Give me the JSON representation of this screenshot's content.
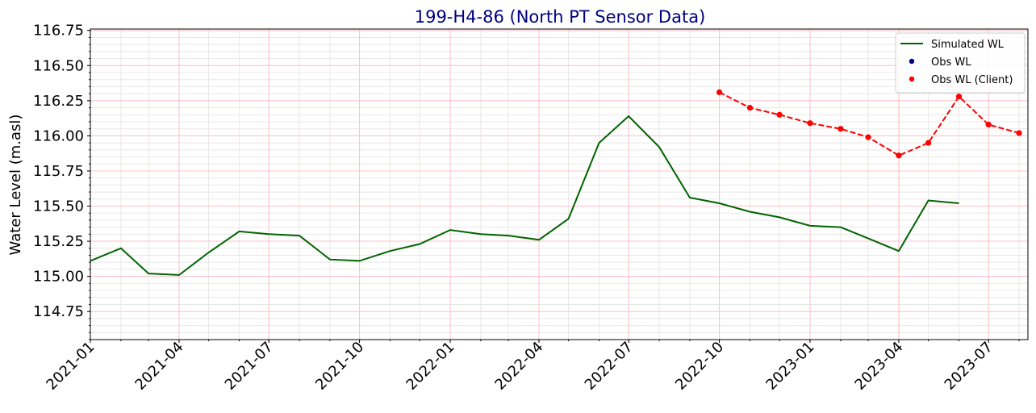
{
  "chart_data": {
    "type": "line",
    "title": "199-H4-86 (North PT Sensor Data)",
    "title_color": "#000080",
    "ylabel": "Water Level (m.asl)",
    "xlabel": "",
    "ylim": [
      114.55,
      116.76
    ],
    "xlim": [
      "2021-01-01",
      "2023-08-10"
    ],
    "y_ticks": [
      114.75,
      115.0,
      115.25,
      115.5,
      115.75,
      116.0,
      116.25,
      116.5,
      116.75
    ],
    "y_tick_labels": [
      "114.75",
      "115.00",
      "115.25",
      "115.50",
      "115.75",
      "116.00",
      "116.25",
      "116.50",
      "116.75"
    ],
    "x_ticks": [
      "2021-01-01",
      "2021-04-01",
      "2021-07-01",
      "2021-10-01",
      "2022-01-01",
      "2022-04-01",
      "2022-07-01",
      "2022-10-01",
      "2023-01-01",
      "2023-04-01",
      "2023-07-01"
    ],
    "x_tick_labels": [
      "2021-01",
      "2021-04",
      "2021-07",
      "2021-10",
      "2022-01",
      "2022-04",
      "2022-07",
      "2022-10",
      "2023-01",
      "2023-04",
      "2023-07"
    ],
    "grid": {
      "major": true,
      "minor": true,
      "major_color": "#ffc0cb",
      "minor_color": "#e8e8e8"
    },
    "legend": {
      "placement": "top-right",
      "entries": [
        {
          "label": "Simulated WL",
          "marker": "line",
          "color": "#006400"
        },
        {
          "label": "Obs WL",
          "marker": "dot",
          "color": "#000080"
        },
        {
          "label": "Obs WL (Client)",
          "marker": "dot",
          "color": "#ff0000"
        }
      ]
    },
    "series": [
      {
        "name": "Simulated WL",
        "style": "solid",
        "color": "#006400",
        "points": [
          {
            "x": "2021-01-01",
            "y": 115.11
          },
          {
            "x": "2021-02-01",
            "y": 115.2
          },
          {
            "x": "2021-03-01",
            "y": 115.02
          },
          {
            "x": "2021-04-01",
            "y": 115.01
          },
          {
            "x": "2021-05-01",
            "y": 115.17
          },
          {
            "x": "2021-06-01",
            "y": 115.32
          },
          {
            "x": "2021-07-01",
            "y": 115.3
          },
          {
            "x": "2021-08-01",
            "y": 115.29
          },
          {
            "x": "2021-09-01",
            "y": 115.12
          },
          {
            "x": "2021-10-01",
            "y": 115.11
          },
          {
            "x": "2021-11-01",
            "y": 115.18
          },
          {
            "x": "2021-12-01",
            "y": 115.23
          },
          {
            "x": "2022-01-01",
            "y": 115.33
          },
          {
            "x": "2022-02-01",
            "y": 115.3
          },
          {
            "x": "2022-03-01",
            "y": 115.29
          },
          {
            "x": "2022-04-01",
            "y": 115.26
          },
          {
            "x": "2022-05-01",
            "y": 115.41
          },
          {
            "x": "2022-06-01",
            "y": 115.95
          },
          {
            "x": "2022-07-01",
            "y": 116.14
          },
          {
            "x": "2022-08-01",
            "y": 115.92
          },
          {
            "x": "2022-09-01",
            "y": 115.56
          },
          {
            "x": "2022-10-01",
            "y": 115.52
          },
          {
            "x": "2022-11-01",
            "y": 115.46
          },
          {
            "x": "2022-12-01",
            "y": 115.42
          },
          {
            "x": "2023-01-01",
            "y": 115.36
          },
          {
            "x": "2023-02-01",
            "y": 115.35
          },
          {
            "x": "2023-03-01",
            "y": 115.27
          },
          {
            "x": "2023-04-01",
            "y": 115.18
          },
          {
            "x": "2023-05-01",
            "y": 115.54
          },
          {
            "x": "2023-06-01",
            "y": 115.52
          }
        ]
      },
      {
        "name": "Obs WL",
        "style": "dots",
        "color": "#000080",
        "points": []
      },
      {
        "name": "Obs WL (Client)",
        "style": "dashed-dots",
        "color": "#ff0000",
        "points": [
          {
            "x": "2022-10-01",
            "y": 116.31
          },
          {
            "x": "2022-11-01",
            "y": 116.2
          },
          {
            "x": "2022-12-01",
            "y": 116.15
          },
          {
            "x": "2023-01-01",
            "y": 116.09
          },
          {
            "x": "2023-02-01",
            "y": 116.05
          },
          {
            "x": "2023-03-01",
            "y": 115.99
          },
          {
            "x": "2023-04-01",
            "y": 115.86
          },
          {
            "x": "2023-05-01",
            "y": 115.95
          },
          {
            "x": "2023-06-01",
            "y": 116.28
          },
          {
            "x": "2023-07-01",
            "y": 116.08
          },
          {
            "x": "2023-08-01",
            "y": 116.02
          }
        ]
      }
    ]
  }
}
